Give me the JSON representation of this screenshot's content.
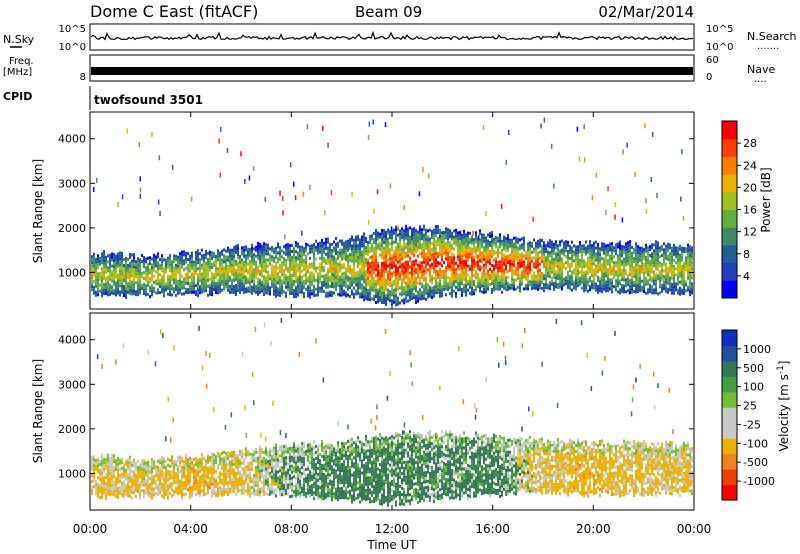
{
  "header": {
    "station": "Dome C East (fitACF)",
    "beam": "Beam 09",
    "date": "02/Mar/2014"
  },
  "params": {
    "nsky_label": "N.Sky",
    "nsearch_label": "N.Search",
    "nsearch_dots": ".......",
    "pow_tick_top": "10^5",
    "pow_tick_bottom": "10^0",
    "freq_label": "Freq.",
    "freq_unit": "[MHz]",
    "freq_tick": "8",
    "nave_label": "Nave",
    "nave_dots": "....",
    "nave_tick_top": "60",
    "nave_tick_bottom": "0",
    "cpid_label": "CPID",
    "cpid_value": "twofsound 3501"
  },
  "chart_data": [
    {
      "type": "heatmap",
      "name": "power",
      "xlabel": "",
      "ylabel": "Slant Range [km]",
      "x_ticks": [
        "00:00",
        "04:00",
        "08:00",
        "12:00",
        "16:00",
        "20:00",
        "00:00"
      ],
      "y_ticks": [
        1000,
        2000,
        3000,
        4000
      ],
      "xlim": [
        0,
        24
      ],
      "ylim": [
        180,
        4600
      ],
      "colorbar": {
        "label": "Power [dB]",
        "ticks": [
          4,
          8,
          12,
          16,
          20,
          24,
          28
        ],
        "colors": [
          "#0000ff",
          "#2040c0",
          "#20609a",
          "#3c8c6a",
          "#60b040",
          "#a0c020",
          "#f0b000",
          "#ff8000",
          "#ff4000",
          "#ff0000"
        ]
      },
      "bands": [
        {
          "t": 0.5,
          "lo": 500,
          "hi": 1450
        },
        {
          "t": 2.0,
          "lo": 500,
          "hi": 1350
        },
        {
          "t": 4.0,
          "lo": 550,
          "hi": 1450
        },
        {
          "t": 6.0,
          "lo": 550,
          "hi": 1600
        },
        {
          "t": 8.0,
          "lo": 500,
          "hi": 1650
        },
        {
          "t": 10.0,
          "lo": 500,
          "hi": 1750
        },
        {
          "t": 12.0,
          "lo": 300,
          "hi": 2000
        },
        {
          "t": 14.0,
          "lo": 500,
          "hi": 2000
        },
        {
          "t": 16.0,
          "lo": 600,
          "hi": 1850
        },
        {
          "t": 18.0,
          "lo": 650,
          "hi": 1700
        },
        {
          "t": 20.0,
          "lo": 600,
          "hi": 1650
        },
        {
          "t": 22.0,
          "lo": 550,
          "hi": 1650
        },
        {
          "t": 23.9,
          "lo": 550,
          "hi": 1650
        }
      ]
    },
    {
      "type": "heatmap",
      "name": "velocity",
      "xlabel": "Time UT",
      "ylabel": "Slant Range [km]",
      "x_ticks": [
        "00:00",
        "04:00",
        "08:00",
        "12:00",
        "16:00",
        "20:00",
        "00:00"
      ],
      "y_ticks": [
        1000,
        2000,
        3000,
        4000
      ],
      "xlim": [
        0,
        24
      ],
      "ylim": [
        180,
        4600
      ],
      "colorbar": {
        "label": "Velocity [m s^-1]",
        "ticks": [
          1000,
          500,
          100,
          25,
          -25,
          -100,
          -500,
          -1000
        ],
        "colors": [
          "#1030c0",
          "#2050a0",
          "#307858",
          "#40a040",
          "#70c030",
          "#c8c8c8",
          "#c8c8c8",
          "#f0b000",
          "#f08020",
          "#f04000",
          "#ff0000"
        ]
      },
      "bands": [
        {
          "t": 0.5,
          "lo": 500,
          "hi": 1400,
          "v": -150
        },
        {
          "t": 2.0,
          "lo": 500,
          "hi": 1300,
          "v": -120
        },
        {
          "t": 4.0,
          "lo": 500,
          "hi": 1400,
          "v": -200
        },
        {
          "t": 6.0,
          "lo": 550,
          "hi": 1500,
          "v": -150
        },
        {
          "t": 8.0,
          "lo": 500,
          "hi": 1650,
          "v": 50
        },
        {
          "t": 10.0,
          "lo": 450,
          "hi": 1700,
          "v": 150
        },
        {
          "t": 12.0,
          "lo": 300,
          "hi": 1900,
          "v": 120
        },
        {
          "t": 14.0,
          "lo": 450,
          "hi": 1900,
          "v": 80
        },
        {
          "t": 16.0,
          "lo": 550,
          "hi": 1850,
          "v": 120
        },
        {
          "t": 18.0,
          "lo": 600,
          "hi": 1750,
          "v": -150
        },
        {
          "t": 20.0,
          "lo": 550,
          "hi": 1700,
          "v": -200
        },
        {
          "t": 22.0,
          "lo": 550,
          "hi": 1700,
          "v": -150
        },
        {
          "t": 23.9,
          "lo": 550,
          "hi": 1650,
          "v": -120
        }
      ]
    }
  ]
}
